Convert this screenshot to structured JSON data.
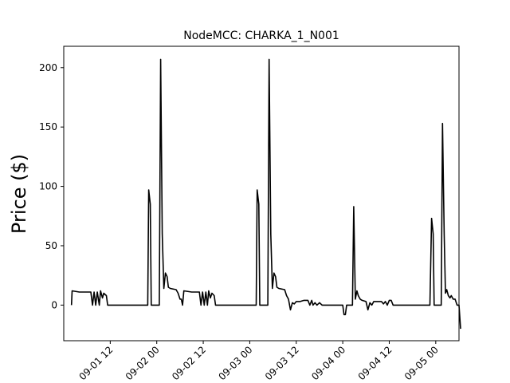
{
  "chart_data": {
    "type": "line",
    "title": "NodeMCC: CHARKA_1_N001",
    "xlabel": "",
    "ylabel": "Price ($)",
    "ylim": [
      -30,
      218
    ],
    "xlim": [
      "2018-09-01 00:00",
      "2018-09-05 06:00"
    ],
    "yticks": [
      0,
      50,
      100,
      150,
      200
    ],
    "xticks": [
      {
        "value": "2018-09-01 12:00",
        "label": "09-01 12"
      },
      {
        "value": "2018-09-02 00:00",
        "label": "09-02 00"
      },
      {
        "value": "2018-09-02 12:00",
        "label": "09-02 12"
      },
      {
        "value": "2018-09-03 00:00",
        "label": "09-03 00"
      },
      {
        "value": "2018-09-03 12:00",
        "label": "09-03 12"
      },
      {
        "value": "2018-09-04 00:00",
        "label": "09-04 00"
      },
      {
        "value": "2018-09-04 12:00",
        "label": "09-04 12"
      },
      {
        "value": "2018-09-05 00:00",
        "label": "09-05 00"
      }
    ],
    "grid": false,
    "line_color": "#000000",
    "series": [
      {
        "name": "",
        "points": [
          [
            "2018-09-01 02:00",
            0
          ],
          [
            "2018-09-01 02:10",
            12
          ],
          [
            "2018-09-01 04:00",
            11
          ],
          [
            "2018-09-01 07:00",
            11
          ],
          [
            "2018-09-01 07:25",
            0
          ],
          [
            "2018-09-01 07:50",
            11
          ],
          [
            "2018-09-01 08:15",
            0
          ],
          [
            "2018-09-01 08:40",
            11
          ],
          [
            "2018-09-01 09:10",
            0
          ],
          [
            "2018-09-01 09:30",
            12
          ],
          [
            "2018-09-01 10:00",
            6
          ],
          [
            "2018-09-01 10:20",
            10
          ],
          [
            "2018-09-01 11:00",
            8
          ],
          [
            "2018-09-01 11:20",
            0
          ],
          [
            "2018-09-01 21:40",
            0
          ],
          [
            "2018-09-01 21:55",
            97
          ],
          [
            "2018-09-01 22:20",
            85
          ],
          [
            "2018-09-01 22:35",
            0
          ],
          [
            "2018-09-02 00:40",
            0
          ],
          [
            "2018-09-02 01:00",
            207
          ],
          [
            "2018-09-02 01:25",
            60
          ],
          [
            "2018-09-02 01:50",
            14
          ],
          [
            "2018-09-02 02:15",
            27
          ],
          [
            "2018-09-02 02:40",
            24
          ],
          [
            "2018-09-02 03:00",
            15
          ],
          [
            "2018-09-02 03:30",
            14
          ],
          [
            "2018-09-02 05:00",
            13
          ],
          [
            "2018-09-02 05:30",
            10
          ],
          [
            "2018-09-02 06:00",
            5
          ],
          [
            "2018-09-02 06:20",
            5
          ],
          [
            "2018-09-02 06:40",
            0
          ],
          [
            "2018-09-02 07:00",
            12
          ],
          [
            "2018-09-02 09:00",
            11
          ],
          [
            "2018-09-02 11:00",
            11
          ],
          [
            "2018-09-02 11:25",
            0
          ],
          [
            "2018-09-02 11:50",
            11
          ],
          [
            "2018-09-02 12:15",
            0
          ],
          [
            "2018-09-02 12:40",
            11
          ],
          [
            "2018-09-02 13:05",
            0
          ],
          [
            "2018-09-02 13:25",
            12
          ],
          [
            "2018-09-02 13:50",
            6
          ],
          [
            "2018-09-02 14:15",
            10
          ],
          [
            "2018-09-02 14:50",
            8
          ],
          [
            "2018-09-02 15:10",
            0
          ],
          [
            "2018-09-03 01:40",
            0
          ],
          [
            "2018-09-03 01:55",
            97
          ],
          [
            "2018-09-03 02:20",
            85
          ],
          [
            "2018-09-03 02:35",
            0
          ],
          [
            "2018-09-03 04:40",
            0
          ],
          [
            "2018-09-03 05:00",
            207
          ],
          [
            "2018-09-03 05:25",
            60
          ],
          [
            "2018-09-03 05:50",
            14
          ],
          [
            "2018-09-03 06:15",
            27
          ],
          [
            "2018-09-03 06:40",
            24
          ],
          [
            "2018-09-03 07:00",
            15
          ],
          [
            "2018-09-03 07:30",
            14
          ],
          [
            "2018-09-03 09:00",
            13
          ],
          [
            "2018-09-03 09:30",
            8
          ],
          [
            "2018-09-03 10:00",
            5
          ],
          [
            "2018-09-03 10:30",
            -4
          ],
          [
            "2018-09-03 11:00",
            2
          ],
          [
            "2018-09-03 11:30",
            1
          ],
          [
            "2018-09-03 12:00",
            3
          ],
          [
            "2018-09-03 13:00",
            3
          ],
          [
            "2018-09-03 14:00",
            4
          ],
          [
            "2018-09-03 15:00",
            4
          ],
          [
            "2018-09-03 15:30",
            0
          ],
          [
            "2018-09-03 16:00",
            4
          ],
          [
            "2018-09-03 16:20",
            0
          ],
          [
            "2018-09-03 16:50",
            2
          ],
          [
            "2018-09-03 17:20",
            0
          ],
          [
            "2018-09-03 18:00",
            2
          ],
          [
            "2018-09-03 18:40",
            0
          ],
          [
            "2018-09-03 19:00",
            0
          ],
          [
            "2018-09-03 23:40",
            0
          ],
          [
            "2018-09-04 00:00",
            0
          ],
          [
            "2018-09-04 00:20",
            -8
          ],
          [
            "2018-09-04 00:40",
            -8
          ],
          [
            "2018-09-04 01:00",
            0
          ],
          [
            "2018-09-04 02:30",
            0
          ],
          [
            "2018-09-04 02:50",
            83
          ],
          [
            "2018-09-04 03:15",
            5
          ],
          [
            "2018-09-04 03:40",
            12
          ],
          [
            "2018-09-04 04:00",
            8
          ],
          [
            "2018-09-04 04:30",
            5
          ],
          [
            "2018-09-04 05:00",
            4
          ],
          [
            "2018-09-04 06:00",
            3
          ],
          [
            "2018-09-04 06:30",
            -4
          ],
          [
            "2018-09-04 07:00",
            2
          ],
          [
            "2018-09-04 07:30",
            0
          ],
          [
            "2018-09-04 08:00",
            3
          ],
          [
            "2018-09-04 09:00",
            3
          ],
          [
            "2018-09-04 10:00",
            3
          ],
          [
            "2018-09-04 10:30",
            1
          ],
          [
            "2018-09-04 11:00",
            3
          ],
          [
            "2018-09-04 11:30",
            0
          ],
          [
            "2018-09-04 12:00",
            4
          ],
          [
            "2018-09-04 12:30",
            4
          ],
          [
            "2018-09-04 13:00",
            0
          ],
          [
            "2018-09-04 22:30",
            0
          ],
          [
            "2018-09-04 22:55",
            73
          ],
          [
            "2018-09-04 23:20",
            60
          ],
          [
            "2018-09-04 23:35",
            0
          ],
          [
            "2018-09-05 01:25",
            0
          ],
          [
            "2018-09-05 01:45",
            153
          ],
          [
            "2018-09-05 02:10",
            60
          ],
          [
            "2018-09-05 02:30",
            10
          ],
          [
            "2018-09-05 02:50",
            13
          ],
          [
            "2018-09-05 03:15",
            8
          ],
          [
            "2018-09-05 03:40",
            6
          ],
          [
            "2018-09-05 04:00",
            8
          ],
          [
            "2018-09-05 04:30",
            5
          ],
          [
            "2018-09-05 05:00",
            5
          ],
          [
            "2018-09-05 05:30",
            0
          ],
          [
            "2018-09-05 06:00",
            0
          ],
          [
            "2018-09-05 06:25",
            -20
          ]
        ]
      }
    ]
  }
}
